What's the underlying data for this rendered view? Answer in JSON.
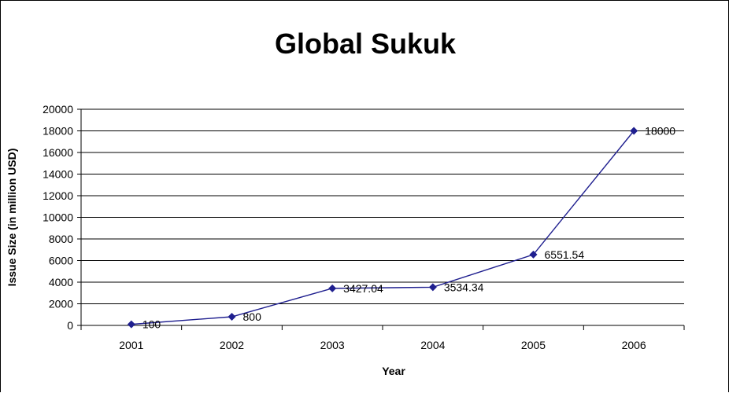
{
  "chart_data": {
    "type": "line",
    "title": "Global Sukuk",
    "xlabel": "Year",
    "ylabel": "Issue Size (in million USD)",
    "categories": [
      "2001",
      "2002",
      "2003",
      "2004",
      "2005",
      "2006"
    ],
    "series": [
      {
        "values": [
          100,
          800,
          3427.04,
          3534.34,
          6551.54,
          18000
        ],
        "data_labels": [
          "100",
          "800",
          "3427.04",
          "3534.34",
          "6551.54",
          "18000"
        ],
        "color": "#1f1f8f"
      }
    ],
    "ylim": [
      0,
      20000
    ],
    "yticks": [
      "0",
      "2000",
      "4000",
      "6000",
      "8000",
      "10000",
      "12000",
      "14000",
      "16000",
      "18000",
      "20000"
    ],
    "grid": true,
    "legend": "none"
  }
}
